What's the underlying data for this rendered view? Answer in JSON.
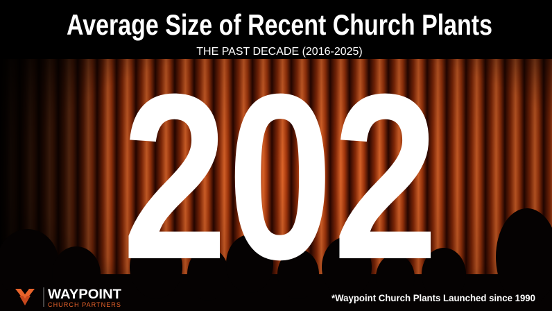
{
  "title": "Average Size of Recent Church Plants",
  "subtitle": "THE PAST DECADE (2016-2025)",
  "figure": 202,
  "logo": {
    "name": "WAYPOINT",
    "tagline": "CHURCH PARTNERS"
  },
  "footnote": "*Waypoint Church Plants Launched since 1990"
}
